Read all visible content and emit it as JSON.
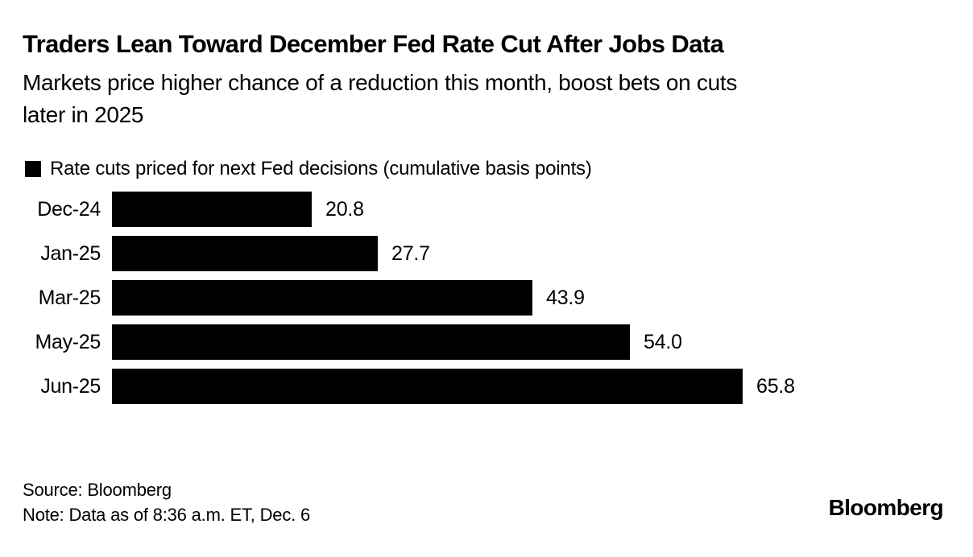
{
  "header": {
    "title": "Traders Lean Toward December Fed Rate Cut After Jobs Data",
    "subtitle_line1": "Markets price higher chance of a reduction this month, boost bets on cuts",
    "subtitle_line2": "later in 2025"
  },
  "legend": {
    "label": "Rate cuts priced for next Fed decisions (cumulative basis points)",
    "swatch_color": "#000000"
  },
  "chart_data": {
    "type": "bar",
    "orientation": "horizontal",
    "title": "Rate cuts priced for next Fed decisions (cumulative basis points)",
    "categories": [
      "Dec-24",
      "Jan-25",
      "Mar-25",
      "May-25",
      "Jun-25"
    ],
    "values": [
      20.8,
      27.7,
      43.9,
      54.0,
      65.8
    ],
    "value_labels": [
      "20.8",
      "27.7",
      "43.9",
      "54.0",
      "65.8"
    ],
    "xlabel": "",
    "ylabel": "",
    "xlim": [
      0,
      70
    ],
    "grid": false,
    "bar_color": "#000000",
    "legend_position": "top-left"
  },
  "footer": {
    "source": "Source: Bloomberg",
    "note": "Note: Data as of 8:36 a.m. ET, Dec. 6",
    "brand": "Bloomberg"
  }
}
